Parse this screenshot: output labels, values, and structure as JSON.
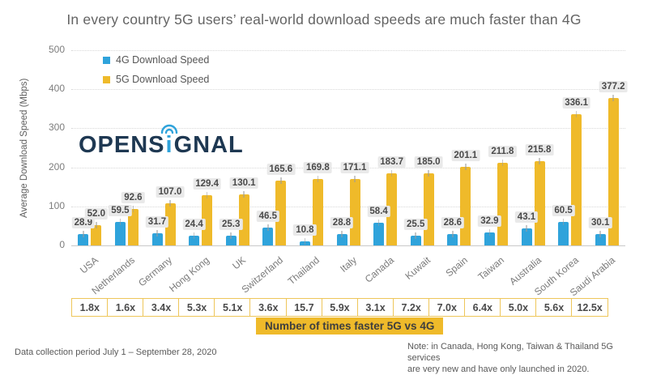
{
  "title": "In every country 5G users’ real-world download speeds are much faster than 4G",
  "logo": {
    "left": "OPENS",
    "i": "i",
    "right": "GNAL"
  },
  "legend": {
    "items": [
      {
        "label": "4G Download Speed",
        "color": "#2fa3db"
      },
      {
        "label": "5G Download Speed",
        "color": "#efba2a"
      }
    ]
  },
  "footer": {
    "left": "Data collection period July 1 – September 28, 2020",
    "note": "Note: in Canada, Hong Kong, Taiwan & Thailand 5G services\nare very new and have only launched in 2020."
  },
  "chart_data": {
    "type": "bar",
    "title": "In every country 5G users’ real-world download speeds are much faster than 4G",
    "xlabel": "",
    "ylabel": "Average Download Speed (Mbps)",
    "ylim": [
      0,
      500
    ],
    "yticks": [
      0,
      100,
      200,
      300,
      400,
      500
    ],
    "grid": "horizontal-dotted",
    "legend_position": "top-left",
    "categories": [
      "USA",
      "Netherlands",
      "Germany",
      "Hong Kong",
      "UK",
      "Switzerland",
      "Thailand",
      "Italy",
      "Canada",
      "Kuwait",
      "Spain",
      "Taiwan",
      "Australia",
      "South Korea",
      "Saudi Arabia"
    ],
    "series": [
      {
        "name": "4G Download Speed",
        "color": "#2fa3db",
        "values": [
          28.9,
          59.5,
          31.7,
          24.4,
          25.3,
          46.5,
          10.8,
          28.8,
          58.4,
          25.5,
          28.6,
          32.9,
          43.1,
          60.5,
          30.1
        ],
        "labels": [
          "28.9",
          "59.5",
          "31.7",
          "24.4",
          "25.3",
          "46.5",
          "10.8",
          "28.8",
          "58.4",
          "25.5",
          "28.6",
          "32.9",
          "43.1",
          "60.5",
          "30.1"
        ]
      },
      {
        "name": "5G Download Speed",
        "color": "#efba2a",
        "values": [
          52.0,
          92.6,
          107.0,
          129.4,
          130.1,
          165.6,
          169.8,
          171.1,
          183.7,
          185.0,
          201.1,
          211.8,
          215.8,
          336.1,
          377.2
        ],
        "labels": [
          "52.0",
          "92.6",
          "107.0",
          "129.4",
          "130.1",
          "165.6",
          "169.8",
          "171.1",
          "183.7",
          "185.0",
          "201.1",
          "211.8",
          "215.8",
          "336.1",
          "377.2"
        ]
      }
    ],
    "multipliers": [
      "1.8x",
      "1.6x",
      "3.4x",
      "5.3x",
      "5.1x",
      "3.6x",
      "15.7",
      "5.9x",
      "3.1x",
      "7.2x",
      "7.0x",
      "6.4x",
      "5.0x",
      "5.6x",
      "12.5x"
    ],
    "multiplier_caption": "Number of times faster 5G vs 4G"
  }
}
